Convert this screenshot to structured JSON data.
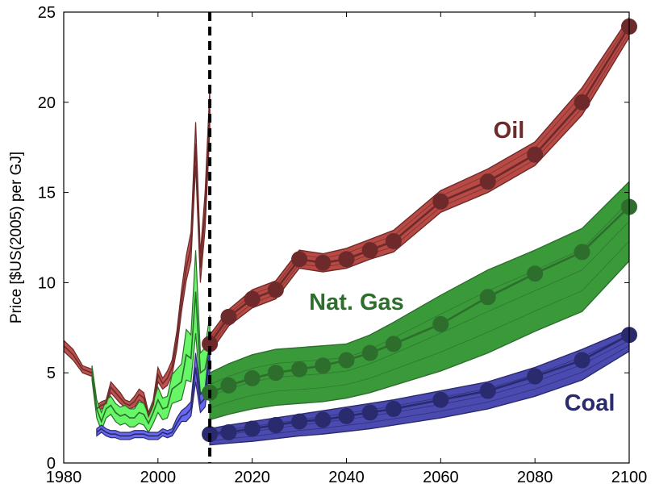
{
  "chart_data": {
    "type": "line",
    "xlabel": "",
    "ylabel": "Price [$US(2005) per GJ]",
    "xlim": [
      1980,
      2100
    ],
    "ylim": [
      0,
      25
    ],
    "xticks": [
      1980,
      2000,
      2020,
      2040,
      2060,
      2080,
      2100
    ],
    "yticks": [
      0,
      5,
      10,
      15,
      20,
      25
    ],
    "grid": false,
    "legend": "none",
    "projection_start_year": 2011,
    "series": [
      {
        "name": "Oil",
        "color": "#6e2a2a",
        "fill_color": "#b84a45",
        "historical_x": [
          1980,
          1982,
          1984,
          1986,
          1987,
          1988,
          1989,
          1990,
          1991,
          1992,
          1993,
          1994,
          1995,
          1996,
          1997,
          1998,
          1999,
          2000,
          2001,
          2002,
          2003,
          2004,
          2005,
          2006,
          2007,
          2008,
          2009,
          2010,
          2011
        ],
        "historical_y": [
          6.5,
          6.0,
          5.2,
          5.0,
          3.0,
          3.2,
          3.3,
          4.2,
          3.9,
          3.6,
          3.3,
          3.2,
          3.4,
          3.8,
          3.6,
          2.6,
          3.2,
          4.9,
          4.4,
          4.7,
          5.3,
          6.8,
          9.0,
          10.8,
          12.0,
          17.7,
          10.8,
          14.0,
          19.6
        ],
        "historical_band": [
          0.3,
          0.3,
          0.2,
          0.2,
          0.2,
          0.2,
          0.2,
          0.3,
          0.3,
          0.3,
          0.2,
          0.2,
          0.3,
          0.3,
          0.3,
          0.2,
          0.3,
          0.4,
          0.3,
          0.4,
          0.4,
          0.5,
          0.6,
          0.7,
          0.8,
          1.2,
          0.8,
          1.0,
          1.2
        ],
        "projection_x": [
          2011,
          2015,
          2020,
          2025,
          2030,
          2035,
          2040,
          2045,
          2050,
          2060,
          2070,
          2080,
          2090,
          2100
        ],
        "projection_y": [
          6.6,
          8.1,
          9.1,
          9.6,
          11.3,
          11.1,
          11.3,
          11.8,
          12.3,
          14.5,
          15.6,
          17.1,
          20.0,
          24.2
        ],
        "projection_lower": [
          6.1,
          7.6,
          8.6,
          9.1,
          10.8,
          10.6,
          10.8,
          11.3,
          11.7,
          13.9,
          15.0,
          16.5,
          19.3,
          23.6
        ],
        "projection_upper": [
          7.1,
          8.5,
          9.6,
          10.1,
          11.8,
          11.6,
          11.9,
          12.4,
          12.9,
          15.1,
          16.3,
          17.8,
          20.8,
          24.7
        ],
        "markers_x": [
          2011,
          2015,
          2020,
          2025,
          2030,
          2035,
          2040,
          2045,
          2050,
          2060,
          2070,
          2080,
          2090,
          2100
        ],
        "label": "Oil"
      },
      {
        "name": "Nat. Gas",
        "color": "#2d6e2d",
        "fill_color": "#3a9a3a",
        "historical_color": "#5ff55f",
        "historical_x": [
          1986,
          1987,
          1988,
          1989,
          1990,
          1991,
          1992,
          1993,
          1994,
          1995,
          1996,
          1997,
          1998,
          1999,
          2000,
          2001,
          2002,
          2003,
          2004,
          2005,
          2006,
          2007,
          2008,
          2009,
          2010,
          2011
        ],
        "historical_y": [
          5.0,
          3.0,
          2.3,
          3.0,
          3.2,
          2.8,
          2.6,
          2.7,
          2.5,
          2.5,
          2.8,
          2.7,
          2.2,
          2.8,
          3.5,
          3.0,
          3.1,
          4.1,
          4.3,
          4.5,
          6.0,
          5.8,
          9.5,
          5.0,
          5.2,
          6.6
        ],
        "historical_band": [
          0.4,
          0.5,
          0.5,
          0.5,
          0.5,
          0.5,
          0.5,
          0.5,
          0.5,
          0.5,
          0.6,
          0.6,
          0.5,
          0.6,
          0.7,
          0.6,
          0.6,
          0.8,
          0.9,
          1.0,
          1.4,
          1.3,
          2.3,
          1.1,
          1.2,
          1.6
        ],
        "projection_x": [
          2011,
          2015,
          2020,
          2025,
          2030,
          2035,
          2040,
          2045,
          2050,
          2060,
          2070,
          2080,
          2090,
          2100
        ],
        "projection_y": [
          3.9,
          4.3,
          4.7,
          5.0,
          5.2,
          5.4,
          5.7,
          6.1,
          6.6,
          7.7,
          9.2,
          10.5,
          11.7,
          14.2
        ],
        "projection_lower": [
          2.4,
          2.7,
          3.0,
          3.2,
          3.3,
          3.4,
          3.6,
          3.9,
          4.3,
          5.1,
          6.1,
          7.3,
          8.4,
          11.2
        ],
        "projection_upper": [
          5.0,
          5.5,
          6.0,
          6.3,
          6.4,
          6.5,
          6.6,
          7.1,
          7.8,
          9.3,
          10.7,
          11.8,
          13.0,
          15.6
        ],
        "markers_x": [
          2011,
          2015,
          2020,
          2025,
          2030,
          2035,
          2040,
          2045,
          2050,
          2060,
          2070,
          2080,
          2090,
          2100
        ],
        "label": "Nat. Gas"
      },
      {
        "name": "Coal",
        "color": "#2a2a6e",
        "fill_color": "#4a4ab0",
        "historical_color": "#6060f0",
        "historical_x": [
          1987,
          1988,
          1989,
          1990,
          1991,
          1992,
          1993,
          1994,
          1995,
          1996,
          1997,
          1998,
          1999,
          2000,
          2001,
          2002,
          2003,
          2004,
          2005,
          2006,
          2007,
          2008,
          2009,
          2010,
          2011
        ],
        "historical_y": [
          1.7,
          1.9,
          1.7,
          1.6,
          1.6,
          1.5,
          1.5,
          1.5,
          1.6,
          1.6,
          1.6,
          1.5,
          1.5,
          1.5,
          1.7,
          1.6,
          1.7,
          2.2,
          2.6,
          2.7,
          3.0,
          5.3,
          3.3,
          3.6,
          6.0
        ],
        "historical_band": [
          0.2,
          0.2,
          0.2,
          0.2,
          0.2,
          0.2,
          0.2,
          0.2,
          0.2,
          0.2,
          0.2,
          0.2,
          0.2,
          0.2,
          0.2,
          0.2,
          0.2,
          0.3,
          0.3,
          0.4,
          0.4,
          0.8,
          0.5,
          0.5,
          0.9
        ],
        "projection_x": [
          2011,
          2015,
          2020,
          2025,
          2030,
          2035,
          2040,
          2045,
          2050,
          2060,
          2070,
          2080,
          2090,
          2100
        ],
        "projection_y": [
          1.6,
          1.7,
          1.9,
          2.1,
          2.3,
          2.4,
          2.6,
          2.8,
          3.0,
          3.5,
          4.0,
          4.8,
          5.7,
          7.1
        ],
        "projection_lower": [
          1.0,
          1.1,
          1.2,
          1.35,
          1.5,
          1.6,
          1.75,
          1.9,
          2.1,
          2.5,
          3.0,
          3.7,
          4.6,
          6.2
        ],
        "projection_upper": [
          1.9,
          2.1,
          2.3,
          2.5,
          2.7,
          2.9,
          3.1,
          3.3,
          3.5,
          4.0,
          4.5,
          5.3,
          6.3,
          7.4
        ],
        "markers_x": [
          2011,
          2015,
          2020,
          2025,
          2030,
          2035,
          2040,
          2045,
          2050,
          2060,
          2070,
          2080,
          2090,
          2100
        ],
        "label": "Coal"
      }
    ]
  }
}
